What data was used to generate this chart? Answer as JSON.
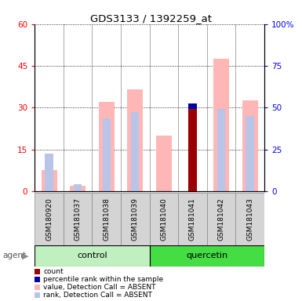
{
  "title": "GDS3133 / 1392259_at",
  "samples": [
    "GSM180920",
    "GSM181037",
    "GSM181038",
    "GSM181039",
    "GSM181040",
    "GSM181041",
    "GSM181042",
    "GSM181043"
  ],
  "value_absent": [
    7.5,
    2.0,
    32.0,
    36.5,
    20.0,
    0.0,
    47.5,
    32.5
  ],
  "rank_absent": [
    13.5,
    2.5,
    26.0,
    28.5,
    0.0,
    0.0,
    29.5,
    27.0
  ],
  "count": [
    0.0,
    0.0,
    0.0,
    0.0,
    0.0,
    29.5,
    0.0,
    0.0
  ],
  "pct_rank": [
    0.0,
    0.0,
    0.0,
    0.0,
    0.0,
    2.0,
    0.0,
    0.0
  ],
  "ylim_left": [
    0,
    60
  ],
  "ylim_right": [
    0,
    100
  ],
  "yticks_left": [
    0,
    15,
    30,
    45,
    60
  ],
  "yticks_right": [
    0,
    25,
    50,
    75,
    100
  ],
  "ytick_labels_right": [
    "0",
    "25",
    "50",
    "75",
    "100%"
  ],
  "color_value_absent": "#ffb6b6",
  "color_rank_absent": "#b8c4e8",
  "color_count": "#9b0000",
  "color_pct_rank": "#0000aa",
  "bar_width": 0.55,
  "inner_bar_width": 0.28,
  "color_control_bg": "#c0f0c0",
  "color_quercetin_bg": "#44dd44",
  "color_sample_bg": "#d4d4d4",
  "legend_items": [
    {
      "label": "count",
      "color": "#9b0000"
    },
    {
      "label": "percentile rank within the sample",
      "color": "#0000aa"
    },
    {
      "label": "value, Detection Call = ABSENT",
      "color": "#ffb6b6"
    },
    {
      "label": "rank, Detection Call = ABSENT",
      "color": "#b8c4e8"
    }
  ]
}
